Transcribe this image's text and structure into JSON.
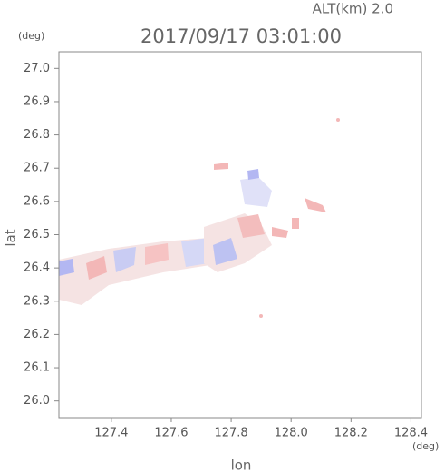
{
  "chart_data": {
    "type": "raster",
    "title": "2017/09/17 03:01:00",
    "subtitle": "ALT(km) 2.0",
    "x_label": "lon",
    "y_label": "lat",
    "x_unit": "(deg)",
    "y_unit": "(deg)",
    "xlim": [
      127.225,
      128.435
    ],
    "ylim": [
      25.95,
      27.05
    ],
    "xticks": [
      127.4,
      127.6,
      127.8,
      {
        "value": 128,
        "label": "128.0"
      },
      128.2,
      128.4
    ],
    "yticks": [
      {
        "value": 26,
        "label": "26.0"
      },
      26.1,
      26.2,
      26.3,
      26.4,
      26.5,
      26.6,
      26.7,
      26.8,
      26.9,
      {
        "value": 27,
        "label": "27.0"
      }
    ]
  }
}
